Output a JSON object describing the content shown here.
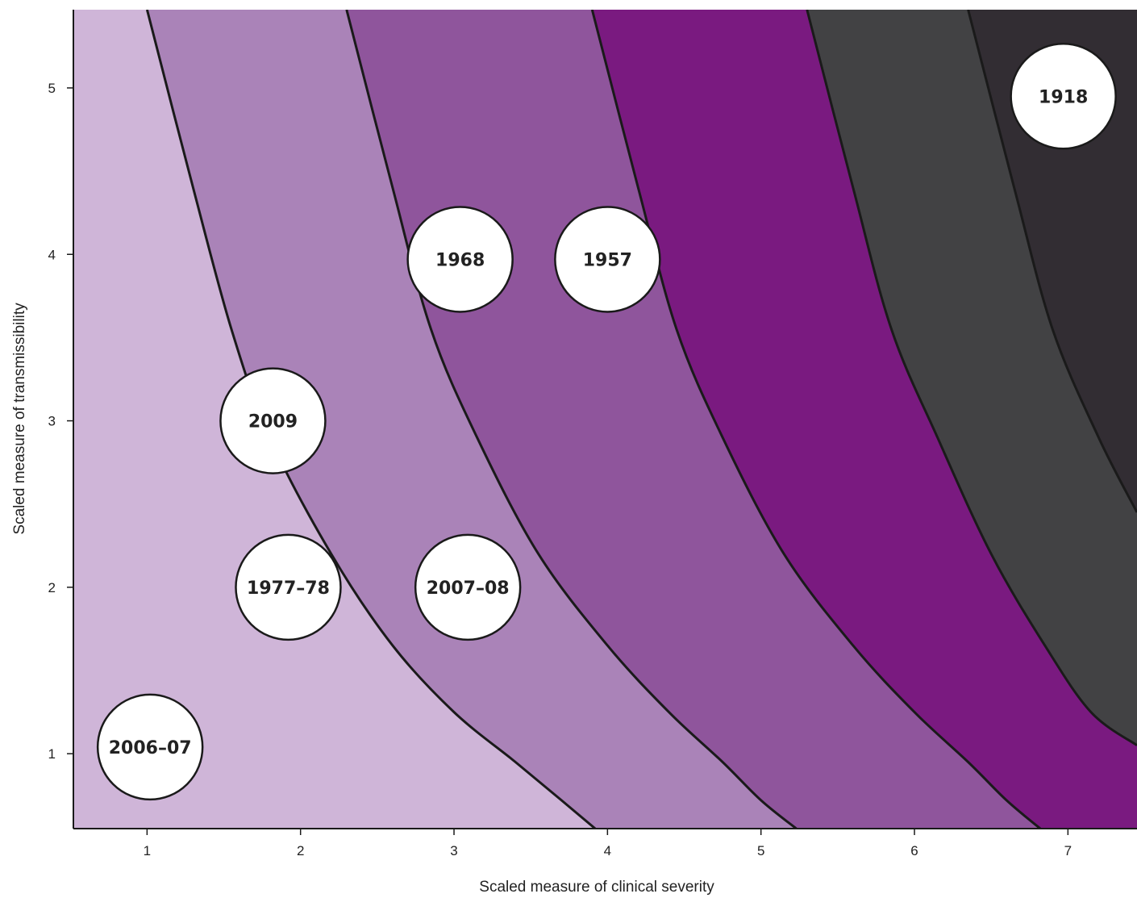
{
  "chart_data": {
    "type": "scatter",
    "xlabel": "Scaled measure of clinical severity",
    "ylabel": "Scaled measure of transmissibility",
    "xlim": [
      0.52,
      7.45
    ],
    "ylim": [
      0.55,
      5.47
    ],
    "x_ticks": [
      1,
      2,
      3,
      4,
      5,
      6,
      7
    ],
    "y_ticks": [
      1,
      2,
      3,
      4,
      5
    ],
    "grid": false,
    "points": [
      {
        "label": "2006–07",
        "x": 1.02,
        "y": 1.04
      },
      {
        "label": "1977–78",
        "x": 1.92,
        "y": 2.0
      },
      {
        "label": "2009",
        "x": 1.82,
        "y": 3.0
      },
      {
        "label": "2007–08",
        "x": 3.09,
        "y": 2.0
      },
      {
        "label": "1968",
        "x": 3.04,
        "y": 3.97
      },
      {
        "label": "1957",
        "x": 4.0,
        "y": 3.97
      },
      {
        "label": "1918",
        "x": 6.97,
        "y": 4.95
      }
    ],
    "background_regions": [
      {
        "level": 1,
        "color": "#cfb5d8"
      },
      {
        "level": 2,
        "color": "#aa83b8"
      },
      {
        "level": 3,
        "color": "#8f559c"
      },
      {
        "level": 4,
        "color": "#7a1a80"
      },
      {
        "level": 5,
        "color": "#424244"
      },
      {
        "level": 6,
        "color": "#322d33"
      }
    ],
    "contour_boundaries": [
      [
        [
          1.0,
          5.47
        ],
        [
          1.3,
          4.4
        ],
        [
          1.55,
          3.55
        ],
        [
          1.8,
          2.9
        ],
        [
          2.2,
          2.2
        ],
        [
          2.6,
          1.65
        ],
        [
          3.0,
          1.25
        ],
        [
          3.4,
          0.95
        ],
        [
          3.7,
          0.72
        ],
        [
          3.92,
          0.55
        ]
      ],
      [
        [
          2.3,
          5.47
        ],
        [
          2.6,
          4.4
        ],
        [
          2.85,
          3.55
        ],
        [
          3.15,
          2.9
        ],
        [
          3.55,
          2.2
        ],
        [
          4.0,
          1.65
        ],
        [
          4.4,
          1.25
        ],
        [
          4.75,
          0.95
        ],
        [
          5.0,
          0.72
        ],
        [
          5.23,
          0.55
        ]
      ],
      [
        [
          3.9,
          5.47
        ],
        [
          4.2,
          4.4
        ],
        [
          4.45,
          3.55
        ],
        [
          4.75,
          2.9
        ],
        [
          5.15,
          2.2
        ],
        [
          5.6,
          1.65
        ],
        [
          6.0,
          1.25
        ],
        [
          6.35,
          0.95
        ],
        [
          6.6,
          0.72
        ],
        [
          6.82,
          0.55
        ]
      ],
      [
        [
          5.3,
          5.47
        ],
        [
          5.6,
          4.4
        ],
        [
          5.85,
          3.55
        ],
        [
          6.15,
          2.9
        ],
        [
          6.5,
          2.2
        ],
        [
          6.85,
          1.65
        ],
        [
          7.15,
          1.25
        ],
        [
          7.45,
          1.05
        ]
      ],
      [
        [
          6.35,
          5.47
        ],
        [
          6.65,
          4.4
        ],
        [
          6.9,
          3.55
        ],
        [
          7.2,
          2.9
        ],
        [
          7.45,
          2.45
        ]
      ]
    ]
  }
}
